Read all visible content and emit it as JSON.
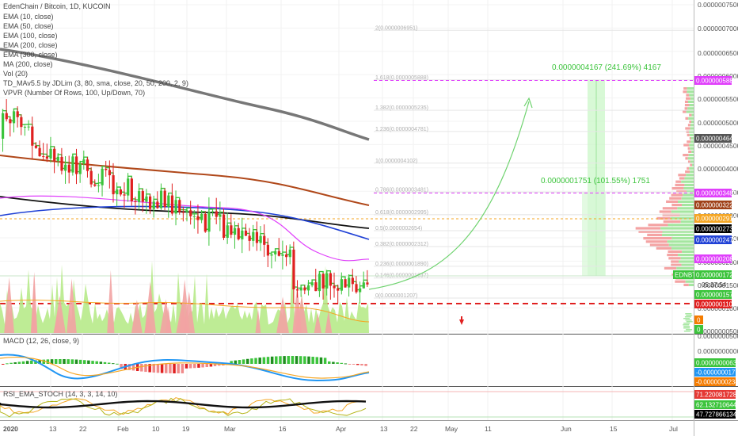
{
  "header": {
    "title": "EdenChain / Bitcoin, 1D, KUCOIN",
    "indicators": [
      "EMA (10, close)",
      "EMA (50, close)",
      "EMA (100, close)",
      "EMA (200, close)",
      "EMA (300, close)",
      "MA (200, close)",
      "Vol (20)",
      "TD_MAv5.5 by JDLim (3, 80, sma, close, 20, 50, 200, 2, 9)",
      "VPVR (Number Of Rows, 100, Up/Down, 70)"
    ]
  },
  "price_axis": {
    "ticks": [
      "0.0000007500",
      "0.0000007000",
      "0.0000006500",
      "0.0000006000",
      "0.0000005500",
      "0.0000005000",
      "0.0000004500",
      "0.0000004000",
      "0.0000003500",
      "0.0000003000",
      "0.0000002500",
      "0.0000002000",
      "0.0000001500",
      "0.0000001000",
      "0.0000000500"
    ],
    "tags": [
      {
        "label": "0.0000005888",
        "color": "#e040fb",
        "text_color": "#ffffff"
      },
      {
        "label": "0.0000004641",
        "color": "#555555",
        "text_color": "#ffffff"
      },
      {
        "label": "0.0000003481",
        "color": "#e040fb",
        "text_color": "#ffffff"
      },
      {
        "label": "0.0000003220",
        "color": "#a0421a",
        "text_color": "#ffffff"
      },
      {
        "label": "0.0000002913",
        "color": "#f5a623",
        "text_color": "#ffffff"
      },
      {
        "label": "0.0000002734",
        "color": "#000000",
        "text_color": "#ffffff"
      },
      {
        "label": "0.0000002470",
        "color": "#2041d6",
        "text_color": "#ffffff"
      },
      {
        "label": "0.0000002085",
        "color": "#e040fb",
        "text_color": "#ffffff"
      },
      {
        "label": "0.0000001721",
        "color": "#3cc43c",
        "text_color": "#ffffff"
      },
      {
        "label": "05:37:54",
        "color": "#ffffff",
        "text_color": "#333333"
      },
      {
        "label": "0.0000001579",
        "color": "#3cc43c",
        "text_color": "#ffffff"
      },
      {
        "label": "0.0000001100",
        "color": "#e02020",
        "text_color": "#ffffff"
      },
      {
        "label": "0",
        "color": "#f57c00",
        "text_color": "#ffffff"
      },
      {
        "label": "0",
        "color": "#3cc43c",
        "text_color": "#ffffff"
      }
    ],
    "symbol_tag": "EDNBTC"
  },
  "fib_levels": [
    {
      "label": "2(0.0000006951)",
      "price": 6.951
    },
    {
      "label": "1.618(0.0000005888)",
      "price": 5.888
    },
    {
      "label": "1.382(0.0000005235)",
      "price": 5.235
    },
    {
      "label": "1.236(0.0000004781)",
      "price": 4.781
    },
    {
      "label": "1(0.0000004102)",
      "price": 4.102
    },
    {
      "label": "0.786(0.0000003481)",
      "price": 3.481
    },
    {
      "label": "0.618(0.0000002995)",
      "price": 2.995
    },
    {
      "label": "0.5(0.0000002654)",
      "price": 2.654
    },
    {
      "label": "0.382(0.0000002312)",
      "price": 2.312
    },
    {
      "label": "0.236(0.0000001890)",
      "price": 1.89
    },
    {
      "label": "0.146(0.0000001637)",
      "price": 1.637
    },
    {
      "label": "0(0.0000001207)",
      "price": 1.207
    }
  ],
  "targets": [
    {
      "label": "0.0000004167 (241.69%) 4167"
    },
    {
      "label": "0.0000001751 (101.55%) 1751"
    }
  ],
  "macd": {
    "legend": "MACD (12, 26, close, 9)",
    "ticks": [
      "0.0000000500",
      "0.0000000000",
      "-0.0000000500"
    ],
    "tags": [
      {
        "label": "0.0000000063",
        "color": "#3cc43c"
      },
      {
        "label": "-0.0000000171",
        "color": "#2196f3"
      },
      {
        "label": "-0.0000000234",
        "color": "#f57c00"
      }
    ]
  },
  "stoch": {
    "legend": "RSI_EMA_STOCH (14, 3, 3, 14, 10)",
    "tags": [
      {
        "label": "71.2200817280",
        "color": "#e53935"
      },
      {
        "label": "62.1327106441",
        "color": "#3cc43c"
      },
      {
        "label": "47.7278661348",
        "color": "#000000"
      }
    ]
  },
  "time_axis": {
    "labels": [
      "2020",
      "13",
      "22",
      "Feb",
      "10",
      "19",
      "Mar",
      "16",
      "Apr",
      "13",
      "22",
      "May",
      "11",
      "Jun",
      "15",
      "Jul"
    ]
  }
}
